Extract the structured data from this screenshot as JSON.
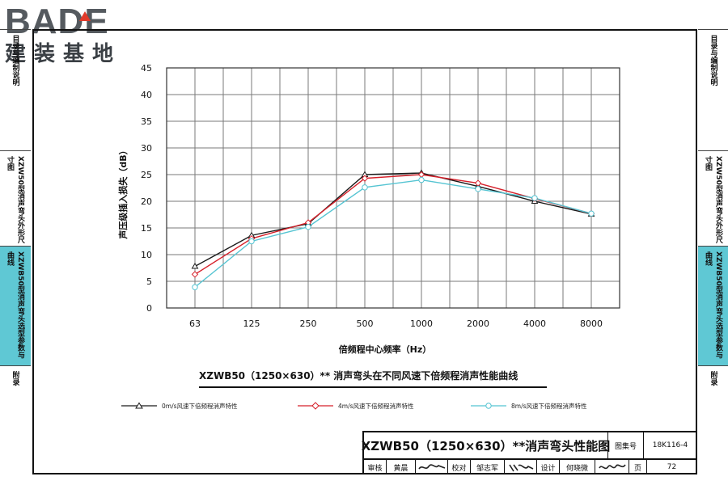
{
  "logo": {
    "brand": "BADE",
    "sub": "建装基地"
  },
  "side_tabs_left": [
    {
      "label": "目录与编制说明",
      "active": false
    },
    {
      "label": "XZW50型消声弯头外形尺寸图",
      "active": false
    },
    {
      "label": "XZWB50型消声弯头选型参数与曲线",
      "active": true
    },
    {
      "label": "附录",
      "active": false
    }
  ],
  "side_tabs_right": [
    {
      "label": "目录与编制说明",
      "active": false
    },
    {
      "label": "XZW50型消声弯头外形尺寸图",
      "active": false
    },
    {
      "label": "XZWB50型消声弯头选型参数与曲线",
      "active": true
    },
    {
      "label": "附录",
      "active": false
    }
  ],
  "figure_caption": "XZWB50（1250×630）** 消声弯头在不同风速下倍频程消声性能曲线",
  "chart_data": {
    "type": "line",
    "title": "",
    "xlabel": "倍频程中心频率（Hz）",
    "ylabel": "声压级插入损失（dB）",
    "categories": [
      "63",
      "125",
      "250",
      "500",
      "1000",
      "2000",
      "4000",
      "8000"
    ],
    "ylim": [
      0,
      45
    ],
    "yticks": [
      0,
      5,
      10,
      15,
      20,
      25,
      30,
      35,
      40,
      45
    ],
    "grid": true,
    "legend_position": "bottom",
    "series": [
      {
        "name": "0m/s风速下倍频程消声特性",
        "values": [
          7.8,
          13.6,
          15.8,
          25.0,
          25.3,
          22.8,
          20.0,
          17.6
        ],
        "color": "#1a1a1a",
        "marker": "triangle"
      },
      {
        "name": "4m/s风速下倍频程消声特性",
        "values": [
          6.3,
          13.0,
          16.0,
          24.3,
          25.0,
          23.4,
          20.5,
          17.7
        ],
        "color": "#d6202a",
        "marker": "diamond"
      },
      {
        "name": "8m/s风速下倍频程消声特性",
        "values": [
          3.9,
          12.5,
          15.2,
          22.6,
          24.0,
          22.3,
          20.6,
          17.7
        ],
        "color": "#55c4d2",
        "marker": "circle"
      }
    ]
  },
  "title_block": {
    "title": "XZWB50（1250×630）**消声弯头性能图",
    "atlas_label": "图集号",
    "atlas_no": "18K116-4",
    "review_label": "审核",
    "review_name": "黄晨",
    "check_label": "校对",
    "check_name": "邹志军",
    "design_label": "设计",
    "design_name": "何晓微",
    "page_label": "页",
    "page_no": "72"
  }
}
